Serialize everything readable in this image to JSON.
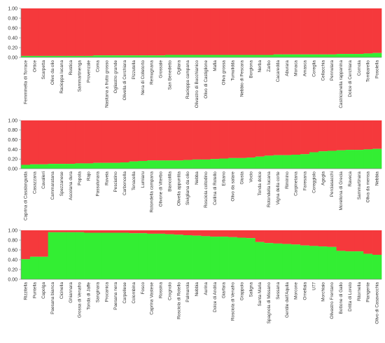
{
  "colors": {
    "red": "#f5393c",
    "green": "#33ee33",
    "axis": "#888888"
  },
  "y_ticks": [
    "0.00",
    "0.20",
    "0.40",
    "0.60",
    "0.80",
    "1.00"
  ],
  "chart_data": [
    {
      "type": "bar",
      "stacked": true,
      "ylim": [
        0,
        1
      ],
      "categories": [
        "Femminella di Torrace",
        "Ortice",
        "Scarpetta",
        "Olivo da olio",
        "Racioppa lucana",
        "Rustica",
        "Sammartinenga",
        "Provenzale",
        "Coma",
        "Nasitana a frutto grosso",
        "Ogliastro grande",
        "Olivella di Cerchiara",
        "Pizzutella",
        "Nera di Colletorto",
        "Remugnana",
        "Grossale",
        "San Benedetto",
        "Ogliara",
        "Racioppa campana",
        "Olivastro di Bucchianico",
        "Olivo di Castiglione",
        "Mafia",
        "Oliva grossa",
        "Tumulidda",
        "Nebbio di Pescara",
        "Borgiona",
        "Nerba",
        "Zarbo",
        "Cacaredda",
        "Aburara",
        "Monaca",
        "Amasca",
        "Coreglia",
        "Cellacchia",
        "Pennulara",
        "Castricianella rappanina",
        "Dolce di Cerchiara",
        "Cornola",
        "Tombarello",
        "Posolella"
      ],
      "series": [
        {
          "values": [
            0.03,
            0.03,
            0.03,
            0.03,
            0.03,
            0.03,
            0.03,
            0.03,
            0.04,
            0.04,
            0.04,
            0.04,
            0.04,
            0.04,
            0.04,
            0.04,
            0.05,
            0.05,
            0.05,
            0.05,
            0.05,
            0.05,
            0.05,
            0.05,
            0.05,
            0.05,
            0.05,
            0.05,
            0.06,
            0.06,
            0.06,
            0.06,
            0.06,
            0.06,
            0.06,
            0.07,
            0.07,
            0.07,
            0.08,
            0.09
          ]
        },
        {
          "values": [
            0.97,
            0.97,
            0.97,
            0.97,
            0.97,
            0.97,
            0.97,
            0.97,
            0.96,
            0.96,
            0.96,
            0.96,
            0.96,
            0.96,
            0.96,
            0.96,
            0.95,
            0.95,
            0.95,
            0.95,
            0.95,
            0.95,
            0.95,
            0.95,
            0.95,
            0.95,
            0.95,
            0.95,
            0.94,
            0.94,
            0.94,
            0.94,
            0.94,
            0.94,
            0.94,
            0.93,
            0.93,
            0.93,
            0.92,
            0.91
          ]
        }
      ]
    },
    {
      "type": "bar",
      "stacked": true,
      "ylim": [
        0,
        1
      ],
      "categories": [
        "Caprina di Casalanguida",
        "Casazzana",
        "Cavalieri",
        "Cammaratana",
        "Spezzanese",
        "Ascolana dura",
        "Popola",
        "Rajo",
        "Passulunara",
        "Ruveia",
        "Pesciatino",
        "Carboncella",
        "Tenacella",
        "Lumiaru",
        "Rotondella campana",
        "Olivone di Viterbo",
        "Biancolilla",
        "Olivella appuntita",
        "Sivigliana da olio",
        "Nebba",
        "Rosciola coltodino",
        "Cellina di Rotello",
        "Erbano",
        "Olivo da salare",
        "Giusta",
        "Vocio",
        "Tonda dolce",
        "Rotondella lucana",
        "Vigna della corte",
        "Riminino",
        "Carpinetana",
        "Faresana",
        "Coreggiolo",
        "Agogia",
        "Perciasacchi",
        "Morellona di Grecia",
        "Raveca",
        "Sammartinara",
        "Oliva da mensa",
        "Nebbia"
      ],
      "series": [
        {
          "values": [
            0.08,
            0.09,
            0.09,
            0.1,
            0.1,
            0.1,
            0.11,
            0.11,
            0.12,
            0.12,
            0.12,
            0.13,
            0.15,
            0.16,
            0.17,
            0.17,
            0.17,
            0.17,
            0.18,
            0.19,
            0.19,
            0.2,
            0.21,
            0.22,
            0.22,
            0.23,
            0.25,
            0.27,
            0.28,
            0.28,
            0.29,
            0.3,
            0.34,
            0.36,
            0.37,
            0.38,
            0.39,
            0.39,
            0.4,
            0.41
          ]
        },
        {
          "values": [
            0.92,
            0.91,
            0.91,
            0.9,
            0.9,
            0.9,
            0.89,
            0.89,
            0.88,
            0.88,
            0.88,
            0.87,
            0.85,
            0.84,
            0.83,
            0.83,
            0.83,
            0.83,
            0.82,
            0.81,
            0.81,
            0.8,
            0.79,
            0.78,
            0.78,
            0.77,
            0.75,
            0.73,
            0.72,
            0.72,
            0.71,
            0.7,
            0.66,
            0.64,
            0.63,
            0.62,
            0.61,
            0.61,
            0.6,
            0.59
          ]
        }
      ]
    },
    {
      "type": "bar",
      "stacked": true,
      "ylim": [
        0,
        1
      ],
      "categories": [
        "Rizzitella",
        "Puntella",
        "Capolga",
        "Paesana bianca",
        "Cicinella",
        "Ghiannara",
        "Grossa di Venafro",
        "Tonda di Jaffe",
        "Sanginara",
        "Procanica",
        "Paesana nera",
        "Carpellese",
        "Colombina",
        "Fosco",
        "Caprina Vastese",
        "Rossina",
        "Crognolo",
        "Rosciola di Rotello",
        "Palmarola",
        "Nebbia",
        "Aurina",
        "Dolce di Andria",
        "Giarfara",
        "Rosciola di Venafro",
        "Grappolo",
        "Saligna",
        "Santa Maria",
        "Spagnola di Missano",
        "Sessana",
        "Gentile dell'Aquila",
        "Morcone",
        "Ornellaia",
        "U77",
        "Morchiaio",
        "Olivastro Frentano",
        "Bottone di Gallo",
        "Dritta di Loreto",
        "Ritornella",
        "Piangente",
        "Olivo di Casavecchia"
      ],
      "series": [
        {
          "values": [
            0.41,
            0.46,
            0.46,
            0.96,
            0.96,
            0.96,
            0.96,
            0.95,
            0.95,
            0.95,
            0.95,
            0.95,
            0.94,
            0.94,
            0.93,
            0.93,
            0.92,
            0.91,
            0.9,
            0.89,
            0.88,
            0.87,
            0.87,
            0.86,
            0.85,
            0.84,
            0.76,
            0.74,
            0.73,
            0.72,
            0.71,
            0.69,
            0.68,
            0.67,
            0.66,
            0.58,
            0.57,
            0.57,
            0.52,
            0.5
          ]
        },
        {
          "values": [
            0.59,
            0.54,
            0.54,
            0.04,
            0.04,
            0.04,
            0.04,
            0.05,
            0.05,
            0.05,
            0.05,
            0.05,
            0.06,
            0.06,
            0.07,
            0.07,
            0.08,
            0.09,
            0.1,
            0.11,
            0.12,
            0.13,
            0.13,
            0.14,
            0.15,
            0.16,
            0.24,
            0.26,
            0.27,
            0.28,
            0.29,
            0.31,
            0.32,
            0.33,
            0.34,
            0.42,
            0.43,
            0.43,
            0.48,
            0.5
          ]
        }
      ]
    }
  ]
}
